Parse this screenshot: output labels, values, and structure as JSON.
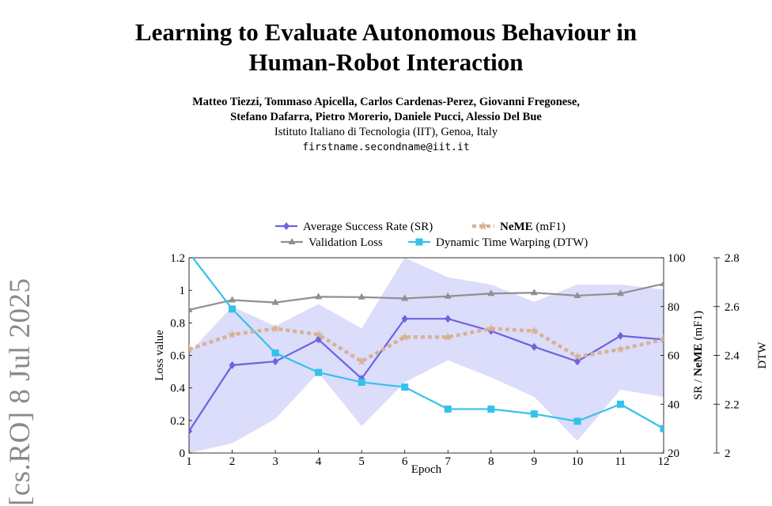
{
  "paper": {
    "title_line1": "Learning to Evaluate Autonomous Behaviour in",
    "title_line2": "Human-Robot Interaction",
    "authors_line1": "Matteo Tiezzi, Tommaso Apicella, Carlos Cardenas-Perez, Giovanni Fregonese,",
    "authors_line2": "Stefano Dafarra, Pietro Morerio, Daniele Pucci, Alessio Del Bue",
    "affiliation": "Istituto Italiano di Tecnologia (IIT), Genoa, Italy",
    "email": "firstname.secondname@iit.it",
    "arxiv_stamp": "[cs.RO]  8 Jul 2025"
  },
  "chart_data": {
    "type": "line",
    "xlabel": "Epoch",
    "ylabel_left": "Loss value",
    "ylabel_right1": "SR / NeME (mF1)",
    "ylabel_right2": "DTW",
    "x": [
      1,
      2,
      3,
      4,
      5,
      6,
      7,
      8,
      9,
      10,
      11,
      12
    ],
    "x_ticks": [
      "1",
      "2",
      "3",
      "4",
      "5",
      "6",
      "7",
      "8",
      "9",
      "10",
      "11",
      "12"
    ],
    "left_axis": {
      "ylim": [
        0,
        1.2
      ],
      "ticks": [
        "0",
        "0.2",
        "0.4",
        "0.6",
        "0.8",
        "1",
        "1.2"
      ]
    },
    "right_axis1": {
      "ylim": [
        20,
        100
      ],
      "ticks": [
        "20",
        "40",
        "60",
        "80",
        "100"
      ]
    },
    "right_axis2": {
      "ylim": [
        2,
        2.8
      ],
      "ticks": [
        "2",
        "2.2",
        "2.4",
        "2.6",
        "2.8"
      ]
    },
    "legend": [
      {
        "label": "Average Success Rate (SR)"
      },
      {
        "label": "NeME",
        "suffix": " (mF1)"
      },
      {
        "label": "Validation Loss"
      },
      {
        "label": "Dynamic Time Warping (DTW)"
      }
    ],
    "series": [
      {
        "name": "Average Success Rate (SR)",
        "axis": "right1",
        "color": "#6b63e0",
        "marker": "diamond",
        "values": [
          29,
          56,
          57.5,
          66.5,
          50.5,
          75,
          75,
          70,
          63.5,
          57.5,
          68,
          66.5
        ],
        "band_lower": [
          20,
          24,
          34,
          53,
          31,
          49,
          58,
          51,
          43,
          25,
          46,
          43
        ],
        "band_upper": [
          61,
          80,
          72,
          81,
          71,
          100,
          92,
          89,
          82,
          89,
          89,
          87
        ],
        "band_color": "#dcdcfb"
      },
      {
        "name": "Validation Loss",
        "axis": "left",
        "color": "#8f8f8f",
        "marker": "triangle",
        "values": [
          0.88,
          0.94,
          0.925,
          0.96,
          0.958,
          0.95,
          0.963,
          0.98,
          0.985,
          0.967,
          0.98,
          1.04
        ]
      },
      {
        "name": "Dynamic Time Warping (DTW)",
        "axis": "right2",
        "color": "#33c2ea",
        "marker": "square",
        "values": [
          2.82,
          2.59,
          2.41,
          2.33,
          2.29,
          2.27,
          2.18,
          2.18,
          2.16,
          2.13,
          2.2,
          2.1
        ]
      },
      {
        "name": "NeME (mF1)",
        "axis": "right1",
        "color": "#d6b294",
        "marker": "star",
        "values": [
          62.5,
          68.5,
          71,
          68.5,
          57.5,
          67.5,
          67.5,
          71,
          70,
          59.5,
          62.5,
          66.5
        ]
      }
    ]
  }
}
